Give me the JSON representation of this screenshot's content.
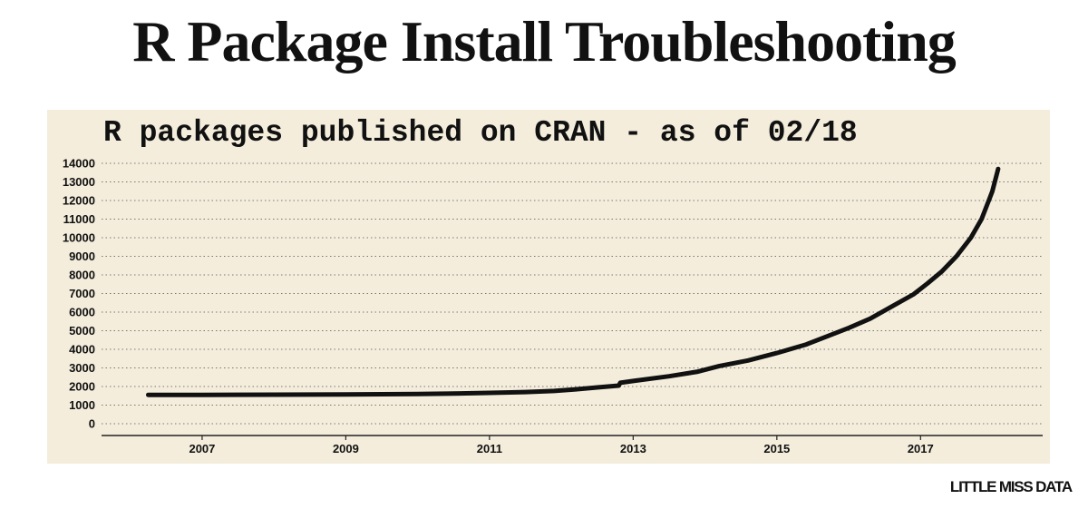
{
  "header": {
    "title": "R Package Install Troubleshooting"
  },
  "brand": {
    "logo_text": "LITTLE MISS DATA"
  },
  "colors": {
    "panel_background": "#f4eddc",
    "line": "#111111",
    "grid": "#777777"
  },
  "chart_data": {
    "type": "line",
    "title": "R packages published on CRAN - as of 02/18",
    "xlabel": "",
    "ylabel": "",
    "ylim": [
      0,
      14000
    ],
    "xlim": [
      2005.6,
      2018.7
    ],
    "y_ticks": [
      0,
      1000,
      2000,
      3000,
      4000,
      5000,
      6000,
      7000,
      8000,
      9000,
      10000,
      11000,
      12000,
      13000,
      14000
    ],
    "x_ticks": [
      "2007",
      "2009",
      "2011",
      "2013",
      "2015",
      "2017"
    ],
    "grid": "horizontal dotted",
    "series": [
      {
        "x": [
          2006.25,
          2007.0,
          2008.0,
          2009.0,
          2010.0,
          2010.5,
          2011.0,
          2011.5,
          2011.9,
          2012.2,
          2012.5,
          2012.8,
          2012.82,
          2013.0,
          2013.5,
          2013.9,
          2014.2,
          2014.6,
          2015.0,
          2015.4,
          2015.7,
          2016.0,
          2016.3,
          2016.6,
          2016.9,
          2017.1,
          2017.3,
          2017.5,
          2017.7,
          2017.85,
          2017.96,
          2018.0,
          2018.08
        ],
        "y": [
          1550,
          1550,
          1560,
          1570,
          1600,
          1620,
          1660,
          1700,
          1760,
          1850,
          1950,
          2050,
          2200,
          2300,
          2550,
          2800,
          3100,
          3400,
          3800,
          4250,
          4700,
          5150,
          5650,
          6300,
          6950,
          7550,
          8200,
          9000,
          10000,
          11000,
          12100,
          12500,
          13700
        ]
      }
    ]
  }
}
